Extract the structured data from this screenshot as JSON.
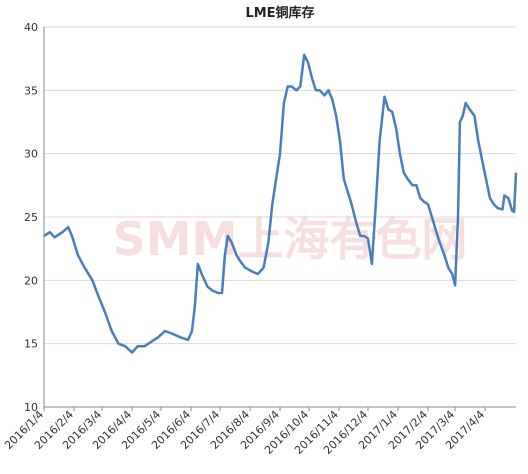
{
  "chart_data": {
    "type": "line",
    "title": "LME铜库存",
    "watermark": "SMM上海有色网",
    "x": [
      "2016/1/4",
      "2016/1/10",
      "2016/1/15",
      "2016/1/23",
      "2016/1/29",
      "2016/2/2",
      "2016/2/8",
      "2016/2/15",
      "2016/2/23",
      "2016/2/29",
      "2016/3/7",
      "2016/3/14",
      "2016/3/21",
      "2016/3/28",
      "2016/4/4",
      "2016/4/10",
      "2016/4/17",
      "2016/4/25",
      "2016/5/1",
      "2016/5/8",
      "2016/5/15",
      "2016/5/24",
      "2016/6/1",
      "2016/6/5",
      "2016/6/8",
      "2016/6/11",
      "2016/6/15",
      "2016/6/21",
      "2016/6/26",
      "2016/7/2",
      "2016/7/6",
      "2016/7/9",
      "2016/7/12",
      "2016/7/16",
      "2016/7/21",
      "2016/7/25",
      "2016/7/30",
      "2016/8/6",
      "2016/8/12",
      "2016/8/18",
      "2016/8/23",
      "2016/8/27",
      "2016/8/31",
      "2016/9/4",
      "2016/9/8",
      "2016/9/12",
      "2016/9/16",
      "2016/9/21",
      "2016/9/25",
      "2016/9/29",
      "2016/10/3",
      "2016/10/7",
      "2016/10/11",
      "2016/10/15",
      "2016/10/20",
      "2016/10/24",
      "2016/10/28",
      "2016/11/1",
      "2016/11/5",
      "2016/11/9",
      "2016/11/13",
      "2016/11/17",
      "2016/11/22",
      "2016/11/26",
      "2016/11/30",
      "2016/12/4",
      "2016/12/8",
      "2016/12/12",
      "2016/12/16",
      "2016/12/21",
      "2016/12/25",
      "2016/12/29",
      "2017/1/2",
      "2017/1/6",
      "2017/1/10",
      "2017/1/14",
      "2017/1/19",
      "2017/1/23",
      "2017/1/27",
      "2017/1/31",
      "2017/2/4",
      "2017/2/8",
      "2017/2/12",
      "2017/2/16",
      "2017/2/21",
      "2017/2/25",
      "2017/3/1",
      "2017/3/4",
      "2017/3/7",
      "2017/3/9",
      "2017/3/12",
      "2017/3/15",
      "2017/3/19",
      "2017/3/24",
      "2017/3/28",
      "2017/4/1",
      "2017/4/5",
      "2017/4/9",
      "2017/4/13",
      "2017/4/17",
      "2017/4/22",
      "2017/4/24",
      "2017/4/28",
      "2017/5/2",
      "2017/5/4",
      "2017/5/6"
    ],
    "series": [
      {
        "name": "LME铜库存",
        "color": "#4a7ebb",
        "values": [
          23.5,
          23.8,
          23.4,
          23.8,
          24.2,
          23.5,
          22,
          21,
          20,
          18.8,
          17.5,
          16,
          15,
          14.8,
          14.3,
          14.8,
          14.8,
          15.2,
          15.5,
          16,
          15.8,
          15.5,
          15.3,
          16,
          18,
          21.3,
          20.5,
          19.5,
          19.2,
          19,
          19,
          22,
          23.5,
          23,
          22,
          21.5,
          21,
          20.7,
          20.5,
          21,
          23,
          26,
          28,
          30,
          34,
          35.3,
          35.3,
          35,
          35.3,
          37.8,
          37.2,
          36,
          35,
          35,
          34.6,
          35,
          34.3,
          33,
          31,
          28,
          27,
          26,
          24.5,
          23.5,
          23.5,
          23.3,
          21.3,
          26,
          31,
          34.5,
          33.5,
          33.3,
          32,
          30,
          28.5,
          28,
          27.5,
          27.5,
          26.5,
          26.2,
          26,
          25,
          24,
          23,
          22,
          21,
          20.5,
          19.6,
          25,
          32.5,
          33,
          34,
          33.5,
          33,
          31,
          29.5,
          28,
          26.5,
          26,
          25.7,
          25.6,
          26.7,
          26.5,
          25.5,
          25.4,
          28.5
        ]
      }
    ],
    "xlim": [
      "2016/1/4",
      "2017/5/6"
    ],
    "xticks": [
      "2016/1/4",
      "2016/2/4",
      "2016/3/4",
      "2016/4/4",
      "2016/5/4",
      "2016/6/4",
      "2016/7/4",
      "2016/8/4",
      "2016/9/4",
      "2016/10/4",
      "2016/11/4",
      "2016/12/4",
      "2017/1/4",
      "2017/2/4",
      "2017/3/4",
      "2017/4/4"
    ],
    "ylim": [
      10,
      40
    ],
    "yticks": [
      10,
      15,
      20,
      25,
      30,
      35,
      40
    ],
    "grid": true
  }
}
